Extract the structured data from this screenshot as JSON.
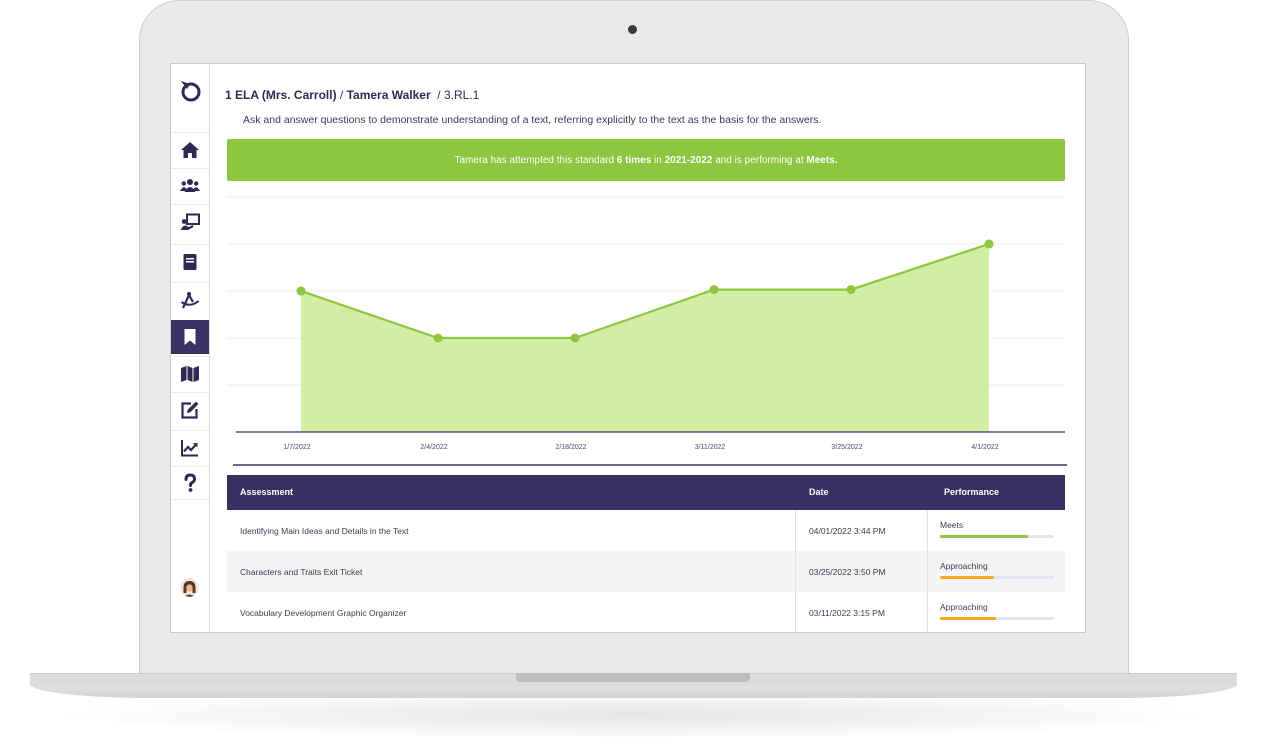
{
  "breadcrumb": {
    "course": "1 ELA (Mrs. Carroll)",
    "sep1": " / ",
    "student": "Tamera Walker",
    "sep2": "  / ",
    "standard": "3.RL.1"
  },
  "standard_description": "Ask and answer questions to demonstrate understanding of a text, referring explicitly to the text as the basis for the answers.",
  "banner": {
    "text_1": "Tamera has attempted this standard ",
    "attempts": "6 times",
    "text_2": " in ",
    "year": "2021-2022",
    "text_3": " and is performing at ",
    "level": "Meets.",
    "color": "#8dc641"
  },
  "sidebar": {
    "items": [
      {
        "name": "home-icon"
      },
      {
        "name": "students-icon"
      },
      {
        "name": "classroom-icon"
      },
      {
        "name": "book-icon"
      },
      {
        "name": "compass-icon"
      },
      {
        "name": "bookmark-icon",
        "active": true
      },
      {
        "name": "map-icon"
      },
      {
        "name": "edit-icon"
      },
      {
        "name": "chart-icon"
      },
      {
        "name": "help-icon"
      }
    ],
    "active_color": "#3b3163"
  },
  "chart_data": {
    "type": "area",
    "x": [
      "1/7/2022",
      "2/4/2022",
      "2/18/2022",
      "3/11/2022",
      "3/25/2022",
      "4/1/2022"
    ],
    "series": [
      {
        "values": [
          2,
          1,
          1,
          2.03,
          2.03,
          3
        ],
        "color": "#8dc641",
        "fill": "#d4eda5"
      }
    ],
    "ylim": [
      -1,
      4
    ],
    "grid": true,
    "title": "",
    "xlabel": "",
    "ylabel": ""
  },
  "table": {
    "headers": [
      "Assessment",
      "Date",
      "Performance"
    ],
    "rows": [
      {
        "assessment": "Identifying Main Ideas and Details in the Text",
        "date": "04/01/2022 3:44 PM",
        "performance": "Meets",
        "progress": 0.77,
        "color": "#8dc641"
      },
      {
        "assessment": "Characters and Traits Exit Ticket",
        "date": "03/25/2022 3:50 PM",
        "performance": "Approaching",
        "progress": 0.47,
        "color": "#f5a623"
      },
      {
        "assessment": "Vocabulary Development Graphic Organizer",
        "date": "03/11/2022 3:15 PM",
        "performance": "Approaching",
        "progress": 0.49,
        "color": "#f5a623"
      }
    ]
  }
}
